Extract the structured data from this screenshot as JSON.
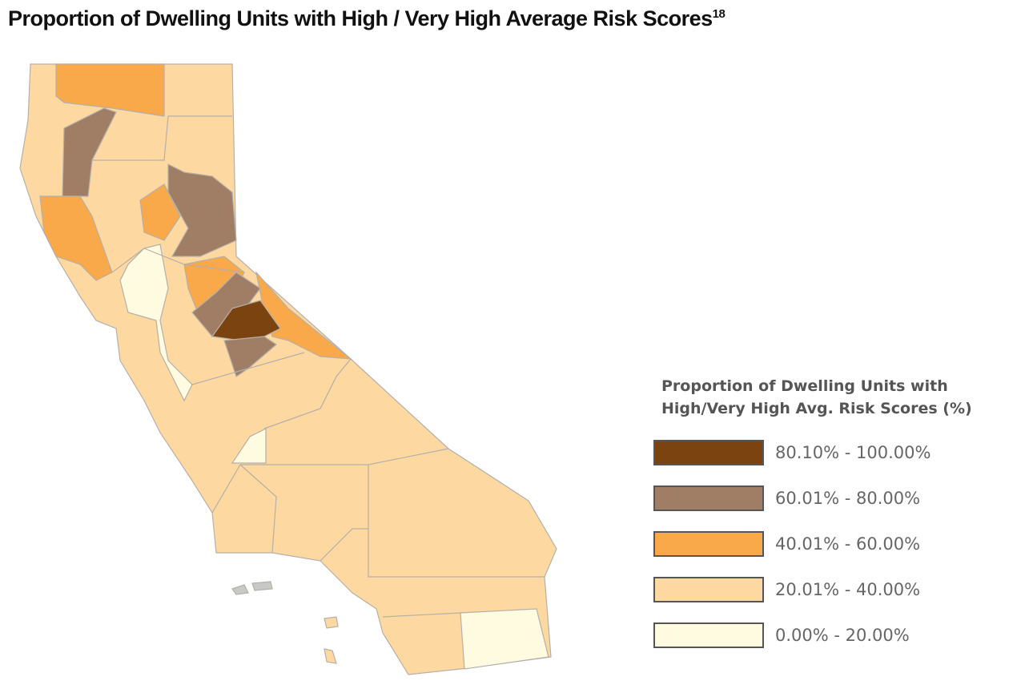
{
  "title": "Proportion of Dwelling Units with High / Very High Average Risk Scores",
  "title_footnote": "18",
  "legend": {
    "title_line1": "Proportion of Dwelling Units with",
    "title_line2": "High/Very High Avg. Risk Scores (%)",
    "items": [
      {
        "label": "80.10% - 100.00%",
        "color": "#7a4310"
      },
      {
        "label": "60.01% - 80.00%",
        "color": "#a07e65"
      },
      {
        "label": "40.01% - 60.00%",
        "color": "#f9a84a"
      },
      {
        "label": "20.01% - 40.00%",
        "color": "#fdd8a0"
      },
      {
        "label": "0.00% - 20.00%",
        "color": "#fefbe0"
      }
    ]
  },
  "map": {
    "region": "California counties",
    "border_color": "#b5b0a8",
    "island_color": "#c8c8c8"
  }
}
